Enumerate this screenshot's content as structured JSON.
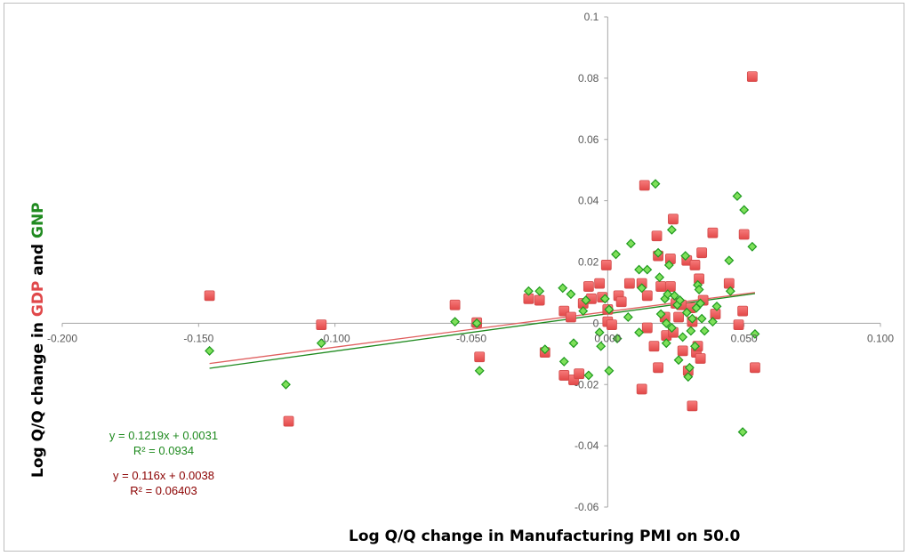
{
  "chart_data": {
    "type": "scatter",
    "title": "",
    "xlabel": "Log Q/Q change in Manufacturing PMI on 50.0",
    "ylabel": {
      "parts": [
        {
          "text": "Log Q/Q change in ",
          "color": "#000000"
        },
        {
          "text": "GDP",
          "color": "#e0484a"
        },
        {
          "text": " and ",
          "color": "#000000"
        },
        {
          "text": "GNP",
          "color": "#1f8a1f"
        }
      ]
    },
    "xlim": [
      -0.2,
      0.1
    ],
    "ylim": [
      -0.06,
      0.1
    ],
    "x_ticks": [
      -0.2,
      -0.15,
      -0.1,
      -0.05,
      0.0,
      0.05,
      0.1
    ],
    "x_tick_labels": [
      "-0.200",
      "-0.150",
      "-0.100",
      "-0.050",
      "0.000",
      "0.050",
      "0.100"
    ],
    "y_ticks": [
      -0.06,
      -0.04,
      -0.02,
      0,
      0.02,
      0.04,
      0.06,
      0.08,
      0.1
    ],
    "y_tick_labels": [
      "-0.06",
      "-0.04",
      "-0.02",
      "0",
      "0.02",
      "0.04",
      "0.06",
      "0.08",
      "0.1"
    ],
    "grid": false,
    "legend": "none",
    "series": [
      {
        "name": "GDP",
        "marker": "square",
        "color": "#f05a5a",
        "trendline": {
          "slope": 0.116,
          "intercept": 0.0038,
          "color": "#e06060",
          "equation": "y = 0.116x + 0.0038",
          "r2": "R² = 0.06403",
          "label_color": "#8b0000"
        },
        "points": [
          [
            -0.146,
            0.009
          ],
          [
            -0.105,
            -0.0005
          ],
          [
            -0.117,
            -0.032
          ],
          [
            -0.056,
            0.006
          ],
          [
            -0.048,
            0.0002
          ],
          [
            -0.047,
            -0.011
          ],
          [
            -0.029,
            0.008
          ],
          [
            -0.025,
            0.0075
          ],
          [
            -0.023,
            -0.0095
          ],
          [
            -0.016,
            0.004
          ],
          [
            -0.0135,
            0.002
          ],
          [
            -0.016,
            -0.017
          ],
          [
            -0.0125,
            -0.0185
          ],
          [
            -0.0105,
            -0.0165
          ],
          [
            -0.009,
            0.0065
          ],
          [
            -0.007,
            0.012
          ],
          [
            -0.006,
            0.008
          ],
          [
            -0.003,
            0.013
          ],
          [
            -0.002,
            0.0085
          ],
          [
            0.0,
            0.0045
          ],
          [
            -0.0005,
            0.019
          ],
          [
            0.0,
            0.0005
          ],
          [
            0.0015,
            -0.0005
          ],
          [
            0.004,
            0.009
          ],
          [
            0.005,
            0.007
          ],
          [
            0.008,
            0.013
          ],
          [
            0.0135,
            0.045
          ],
          [
            0.0125,
            0.013
          ],
          [
            0.0145,
            0.009
          ],
          [
            0.0125,
            -0.0215
          ],
          [
            0.0145,
            -0.0015
          ],
          [
            0.018,
            0.0285
          ],
          [
            0.017,
            -0.0075
          ],
          [
            0.0185,
            0.022
          ],
          [
            0.0185,
            -0.0145
          ],
          [
            0.0195,
            0.012
          ],
          [
            0.021,
            0.002
          ],
          [
            0.0215,
            -0.004
          ],
          [
            0.023,
            0.021
          ],
          [
            0.023,
            0.012
          ],
          [
            0.024,
            0.034
          ],
          [
            0.024,
            -0.003
          ],
          [
            0.025,
            0.0065
          ],
          [
            0.026,
            0.002
          ],
          [
            0.027,
            0.006
          ],
          [
            0.0275,
            -0.009
          ],
          [
            0.029,
            0.0205
          ],
          [
            0.0295,
            -0.0155
          ],
          [
            0.0305,
            0.005
          ],
          [
            0.031,
            -0.027
          ],
          [
            0.031,
            0.0005
          ],
          [
            0.032,
            0.019
          ],
          [
            0.0325,
            -0.0095
          ],
          [
            0.033,
            -0.0075
          ],
          [
            0.0335,
            0.0145
          ],
          [
            0.034,
            -0.0115
          ],
          [
            0.0345,
            0.023
          ],
          [
            0.035,
            0.0075
          ],
          [
            0.0385,
            0.0295
          ],
          [
            0.0395,
            0.003
          ],
          [
            0.0445,
            0.013
          ],
          [
            0.048,
            -0.0005
          ],
          [
            0.0495,
            0.004
          ],
          [
            0.05,
            0.029
          ],
          [
            0.053,
            0.0805
          ],
          [
            0.054,
            -0.0145
          ]
        ]
      },
      {
        "name": "GNP",
        "marker": "diamond",
        "color": "#7ee05a",
        "stroke": "#1e9a1e",
        "trendline": {
          "slope": 0.1219,
          "intercept": 0.0031,
          "color": "#1f8a1f",
          "equation": "y = 0.1219x + 0.0031",
          "r2": "R² = 0.0934",
          "label_color": "#1f8a1f"
        },
        "points": [
          [
            -0.146,
            -0.009
          ],
          [
            -0.118,
            -0.02
          ],
          [
            -0.105,
            -0.0065
          ],
          [
            -0.056,
            0.0005
          ],
          [
            -0.048,
            0.0
          ],
          [
            -0.047,
            -0.0155
          ],
          [
            -0.029,
            0.0105
          ],
          [
            -0.025,
            0.0105
          ],
          [
            -0.023,
            -0.0085
          ],
          [
            -0.0165,
            0.0115
          ],
          [
            -0.016,
            -0.0125
          ],
          [
            -0.0135,
            0.0095
          ],
          [
            -0.0125,
            -0.0065
          ],
          [
            -0.009,
            0.004
          ],
          [
            -0.007,
            -0.017
          ],
          [
            -0.008,
            0.0075
          ],
          [
            -0.003,
            -0.003
          ],
          [
            -0.001,
            0.008
          ],
          [
            -0.0025,
            -0.0075
          ],
          [
            0.0005,
            0.0045
          ],
          [
            0.0005,
            -0.0155
          ],
          [
            0.003,
            0.0225
          ],
          [
            0.0035,
            -0.005
          ],
          [
            0.0085,
            0.026
          ],
          [
            0.0075,
            0.002
          ],
          [
            0.0115,
            0.0175
          ],
          [
            0.0115,
            -0.003
          ],
          [
            0.0125,
            0.0115
          ],
          [
            0.0145,
            0.0175
          ],
          [
            0.0175,
            0.0455
          ],
          [
            0.0185,
            0.023
          ],
          [
            0.019,
            0.015
          ],
          [
            0.0195,
            0.003
          ],
          [
            0.021,
            0.008
          ],
          [
            0.0215,
            0.0
          ],
          [
            0.0215,
            -0.0065
          ],
          [
            0.022,
            0.0095
          ],
          [
            0.0225,
            0.019
          ],
          [
            0.0235,
            0.0305
          ],
          [
            0.0235,
            -0.0015
          ],
          [
            0.0245,
            0.009
          ],
          [
            0.0255,
            0.006
          ],
          [
            0.026,
            -0.012
          ],
          [
            0.0265,
            0.0075
          ],
          [
            0.0275,
            -0.0045
          ],
          [
            0.0285,
            0.022
          ],
          [
            0.029,
            0.0035
          ],
          [
            0.0295,
            -0.0175
          ],
          [
            0.03,
            -0.0145
          ],
          [
            0.0305,
            -0.0025
          ],
          [
            0.031,
            0.0015
          ],
          [
            0.032,
            -0.0075
          ],
          [
            0.0325,
            0.005
          ],
          [
            0.033,
            0.0125
          ],
          [
            0.0335,
            0.011
          ],
          [
            0.034,
            0.0065
          ],
          [
            0.0345,
            0.0015
          ],
          [
            0.0355,
            -0.0025
          ],
          [
            0.0385,
            0.0005
          ],
          [
            0.04,
            0.0055
          ],
          [
            0.0445,
            0.0205
          ],
          [
            0.045,
            0.0105
          ],
          [
            0.0475,
            0.0415
          ],
          [
            0.0495,
            -0.0355
          ],
          [
            0.05,
            0.037
          ],
          [
            0.053,
            0.025
          ],
          [
            0.054,
            -0.0035
          ]
        ]
      }
    ],
    "annotations": [
      {
        "text": "y = 0.1219x + 0.0031",
        "color": "#1f8a1f"
      },
      {
        "text": "R² = 0.0934",
        "color": "#1f8a1f"
      },
      {
        "text": "y = 0.116x + 0.0038",
        "color": "#8b0000"
      },
      {
        "text": "R² = 0.06403",
        "color": "#8b0000"
      }
    ]
  }
}
